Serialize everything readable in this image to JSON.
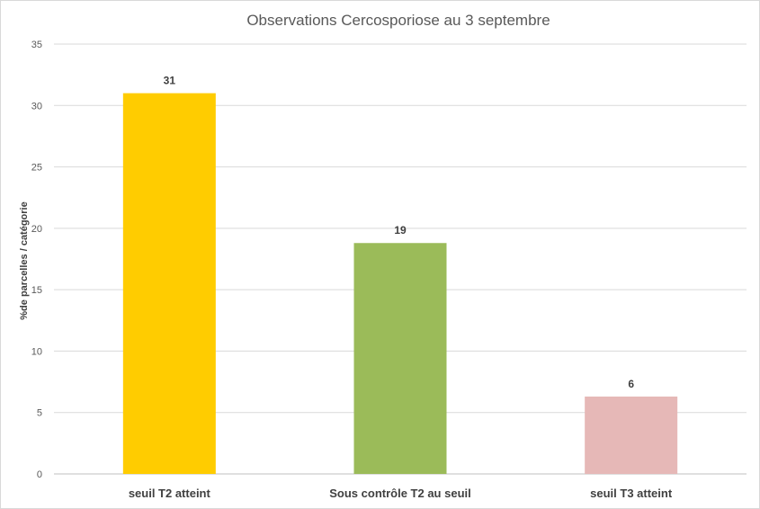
{
  "chart_data": {
    "type": "bar",
    "title": "Observations Cercosporiose au 3 septembre",
    "xlabel": "",
    "ylabel": "%de parcelles / catégorie",
    "categories": [
      "seuil T2 atteint",
      "Sous contrôle T2 au seuil",
      "seuil T3 atteint"
    ],
    "values": [
      31,
      19,
      6
    ],
    "bar_values_exact": [
      31,
      18.8,
      6.3
    ],
    "bar_colors": [
      "#ffcc00",
      "#9bbb59",
      "#e6b8b7"
    ],
    "ylim": [
      0,
      35
    ],
    "yticks": [
      0,
      5,
      10,
      15,
      20,
      25,
      30,
      35
    ],
    "grid": true,
    "legend": "none"
  }
}
